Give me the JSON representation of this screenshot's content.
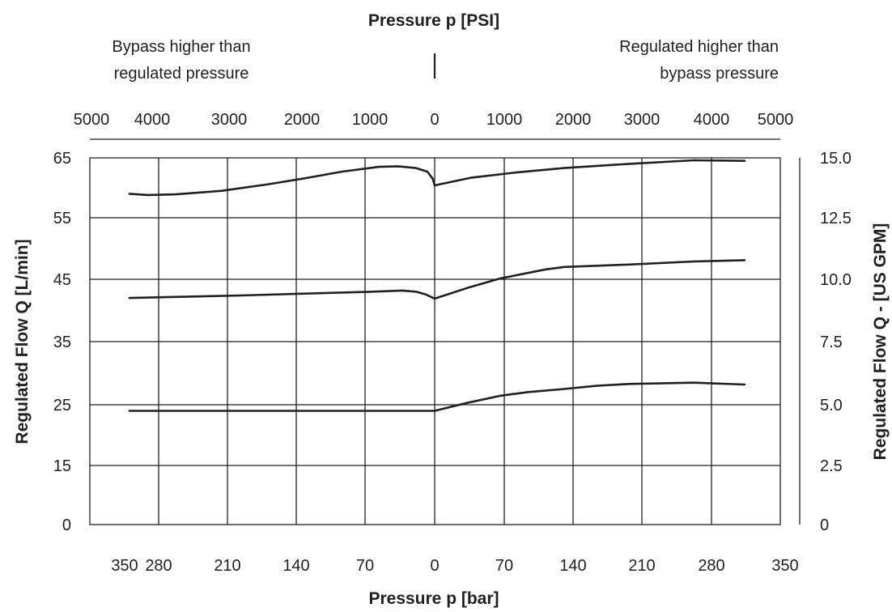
{
  "chart_data": {
    "type": "line",
    "top_axis": {
      "title": "Pressure p [PSI]",
      "ticks": [
        "5000",
        "4000",
        "3000",
        "2000",
        "1000",
        "0",
        "1000",
        "2000",
        "3000",
        "4000",
        "5000"
      ],
      "annotation_left": [
        "Bypass higher than",
        "regulated pressure"
      ],
      "annotation_right": [
        "Regulated higher than",
        "bypass pressure"
      ]
    },
    "bottom_axis": {
      "title": "Pressure p [bar]",
      "ticks": [
        "350",
        "280",
        "210",
        "140",
        "70",
        "0",
        "70",
        "140",
        "210",
        "280",
        "350"
      ]
    },
    "left_axis": {
      "title": "Regulated Flow Q [L/min]",
      "ticks": [
        "0",
        "15",
        "25",
        "35",
        "45",
        "55",
        "65"
      ]
    },
    "right_axis": {
      "title": "Regulated Flow Q - [US GPM]",
      "ticks": [
        "0",
        "2.5",
        "5.0",
        "7.5",
        "10.0",
        "12.5",
        "15.0"
      ]
    },
    "x_range": [
      -350,
      350
    ],
    "x_note": "negative = bypass higher than regulated pressure; positive = regulated higher than bypass pressure (bar)",
    "grid": true,
    "series": [
      {
        "points": [
          [
            -330,
            59.0
          ],
          [
            -310,
            58.8
          ],
          [
            -280,
            58.9
          ],
          [
            -230,
            59.5
          ],
          [
            -180,
            60.6
          ],
          [
            -140,
            61.6
          ],
          [
            -100,
            62.7
          ],
          [
            -60,
            63.5
          ],
          [
            -40,
            63.6
          ],
          [
            -20,
            63.3
          ],
          [
            -8,
            62.7
          ],
          [
            -2,
            61.5
          ],
          [
            0,
            60.4
          ],
          [
            40,
            61.7
          ],
          [
            90,
            62.6
          ],
          [
            140,
            63.3
          ],
          [
            210,
            64.0
          ],
          [
            280,
            64.6
          ],
          [
            335,
            64.5
          ]
        ]
      },
      {
        "points": [
          [
            -330,
            42.0
          ],
          [
            -210,
            42.4
          ],
          [
            -140,
            42.7
          ],
          [
            -70,
            43.0
          ],
          [
            -35,
            43.2
          ],
          [
            -20,
            43.0
          ],
          [
            -10,
            42.6
          ],
          [
            0,
            41.9
          ],
          [
            35,
            43.6
          ],
          [
            70,
            45.1
          ],
          [
            120,
            46.6
          ],
          [
            140,
            47.0
          ],
          [
            210,
            47.4
          ],
          [
            280,
            47.9
          ],
          [
            335,
            48.1
          ]
        ]
      },
      {
        "points": [
          [
            -330,
            24.0
          ],
          [
            0,
            24.0
          ],
          [
            35,
            25.3
          ],
          [
            70,
            26.4
          ],
          [
            100,
            27.0
          ],
          [
            140,
            27.5
          ],
          [
            175,
            28.0
          ],
          [
            210,
            28.3
          ],
          [
            280,
            28.5
          ],
          [
            335,
            28.2
          ]
        ]
      }
    ]
  }
}
